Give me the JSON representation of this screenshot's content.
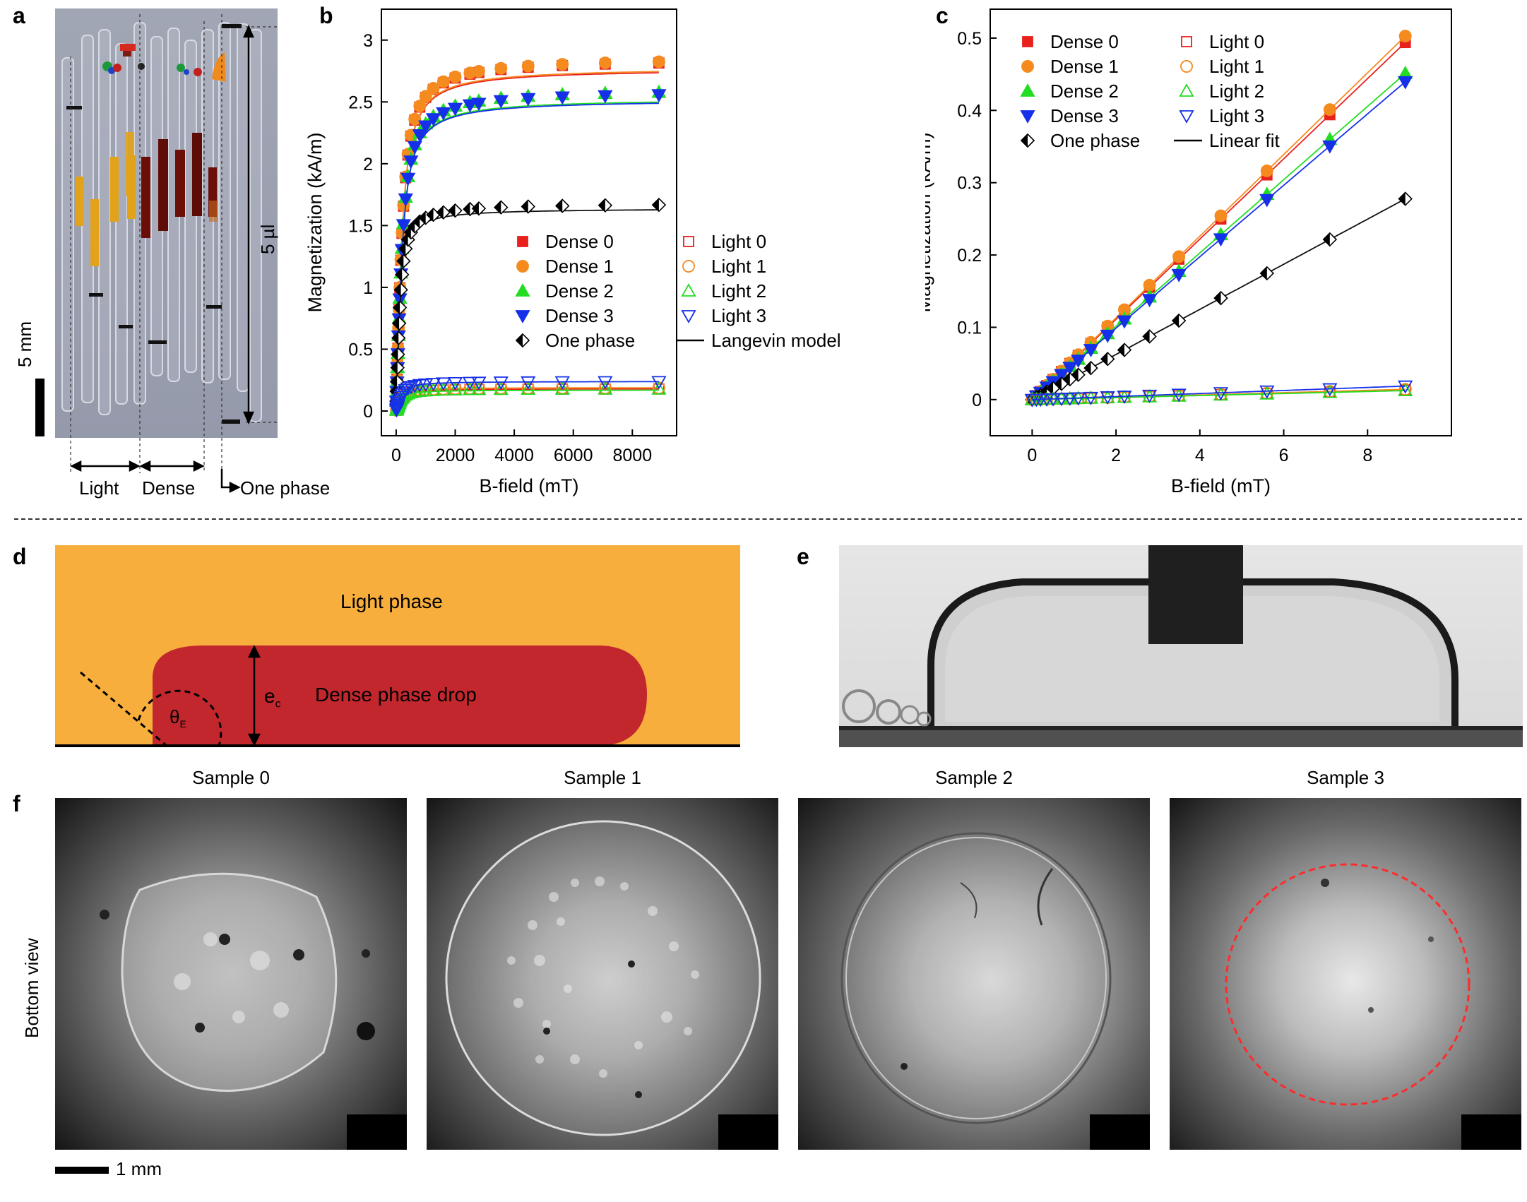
{
  "panel_labels": {
    "a": "a",
    "b": "b",
    "c": "c",
    "d": "d",
    "e": "e",
    "f": "f"
  },
  "panel_a": {
    "scale_bar_label": "5 mm",
    "volume_label": "5 µl",
    "group_labels": {
      "light": "Light",
      "dense": "Dense",
      "one_phase": "One phase"
    },
    "colors": {
      "tube_bg": "#9a9fae",
      "amber": "#e2a21a",
      "dark_red": "#6b0e08",
      "orange": "#f08a1c"
    }
  },
  "panel_d": {
    "light_phase_label": "Light phase",
    "drop_label": "Dense phase drop",
    "thickness_label": "e",
    "thickness_sub": "c",
    "angle_label": "θ",
    "angle_sub": "E",
    "colors": {
      "light_phase": "#f7ae3d",
      "dense_drop": "#c1272d"
    }
  },
  "panel_f": {
    "row_label": "Bottom view",
    "samples": [
      "Sample 0",
      "Sample 1",
      "Sample 2",
      "Sample 3"
    ],
    "scale_bar_label": "1 mm",
    "highlight_color": "#ff2a2a"
  },
  "chart_data": [
    {
      "id": "b",
      "type": "scatter",
      "xlabel": "B-field (mT)",
      "ylabel": "Magnetization (kA/m)",
      "xlim": [
        -500,
        9500
      ],
      "ylim": [
        -0.2,
        3.25
      ],
      "xticks": [
        0,
        2000,
        4000,
        6000,
        8000
      ],
      "yticks": [
        0,
        0.5,
        1,
        1.5,
        2,
        2.5,
        3
      ],
      "legend_position": "center-right",
      "legend": [
        "Dense 0",
        "Dense 1",
        "Dense 2",
        "Dense 3",
        "One phase",
        "Light 0",
        "Light 1",
        "Light 2",
        "Light 3",
        "Langevin model"
      ],
      "series": [
        {
          "name": "Dense 0",
          "marker": "square",
          "filled": true,
          "color": "#e8211d",
          "saturation": 2.85,
          "fit_saturation": 2.77
        },
        {
          "name": "Dense 1",
          "marker": "circle",
          "filled": true,
          "color": "#f58a1f",
          "saturation": 2.86,
          "fit_saturation": 2.78
        },
        {
          "name": "Dense 2",
          "marker": "triangle-up",
          "filled": true,
          "color": "#22dd22",
          "saturation": 2.61,
          "fit_saturation": 2.53
        },
        {
          "name": "Dense 3",
          "marker": "triangle-down",
          "filled": true,
          "color": "#1530e8",
          "saturation": 2.59,
          "fit_saturation": 2.52
        },
        {
          "name": "One phase",
          "marker": "diamond-half",
          "filled": true,
          "color": "#111111",
          "saturation": 1.68,
          "fit_saturation": 1.64
        },
        {
          "name": "Light 0",
          "marker": "square",
          "filled": false,
          "color": "#e8211d",
          "saturation": 0.18,
          "fit_saturation": 0.18
        },
        {
          "name": "Light 1",
          "marker": "circle",
          "filled": false,
          "color": "#f58a1f",
          "saturation": 0.19,
          "fit_saturation": 0.19
        },
        {
          "name": "Light 2",
          "marker": "triangle-up",
          "filled": false,
          "color": "#22dd22",
          "saturation": 0.18,
          "fit_saturation": 0.17
        },
        {
          "name": "Light 3",
          "marker": "triangle-down",
          "filled": false,
          "color": "#1530e8",
          "saturation": 0.24,
          "fit_saturation": 0.24
        }
      ],
      "x_points": [
        10,
        20,
        30,
        45,
        60,
        80,
        100,
        125,
        160,
        200,
        250,
        320,
        400,
        500,
        630,
        800,
        1000,
        1260,
        1600,
        2000,
        2500,
        2800,
        3550,
        4470,
        5630,
        7080,
        8900
      ],
      "fit": {
        "name": "Langevin model",
        "color": "#000000"
      }
    },
    {
      "id": "c",
      "type": "scatter",
      "xlabel": "B-field (mT)",
      "ylabel": "Magnetization (kA/m)",
      "xlim": [
        -1,
        10
      ],
      "ylim": [
        -0.05,
        0.54
      ],
      "xticks": [
        0,
        2,
        4,
        6,
        8
      ],
      "yticks": [
        0,
        0.1,
        0.2,
        0.3,
        0.4,
        0.5
      ],
      "legend_position": "top-left",
      "legend": [
        "Dense 0",
        "Dense 1",
        "Dense 2",
        "Dense 3",
        "One phase",
        "Light 0",
        "Light 1",
        "Light 2",
        "Light 3",
        "Linear fit"
      ],
      "x_points": [
        0.0,
        0.1,
        0.2,
        0.35,
        0.5,
        0.7,
        0.9,
        1.1,
        1.4,
        1.8,
        2.2,
        2.8,
        3.5,
        4.5,
        5.6,
        7.1,
        8.9
      ],
      "series": [
        {
          "name": "Dense 0",
          "marker": "square",
          "filled": true,
          "color": "#e8211d",
          "slope": 0.0555
        },
        {
          "name": "Dense 1",
          "marker": "circle",
          "filled": true,
          "color": "#f58a1f",
          "slope": 0.0565
        },
        {
          "name": "Dense 2",
          "marker": "triangle-up",
          "filled": true,
          "color": "#22dd22",
          "slope": 0.0507
        },
        {
          "name": "Dense 3",
          "marker": "triangle-down",
          "filled": true,
          "color": "#1530e8",
          "slope": 0.0494
        },
        {
          "name": "One phase",
          "marker": "diamond-half",
          "filled": true,
          "color": "#111111",
          "slope": 0.0312
        },
        {
          "name": "Light 0",
          "marker": "square",
          "filled": false,
          "color": "#e8211d",
          "slope": 0.0015
        },
        {
          "name": "Light 1",
          "marker": "circle",
          "filled": false,
          "color": "#f58a1f",
          "slope": 0.0016
        },
        {
          "name": "Light 2",
          "marker": "triangle-up",
          "filled": false,
          "color": "#22dd22",
          "slope": 0.0014
        },
        {
          "name": "Light 3",
          "marker": "triangle-down",
          "filled": false,
          "color": "#1530e8",
          "slope": 0.0021
        }
      ],
      "fit": {
        "name": "Linear fit",
        "color": "#000000"
      }
    }
  ]
}
